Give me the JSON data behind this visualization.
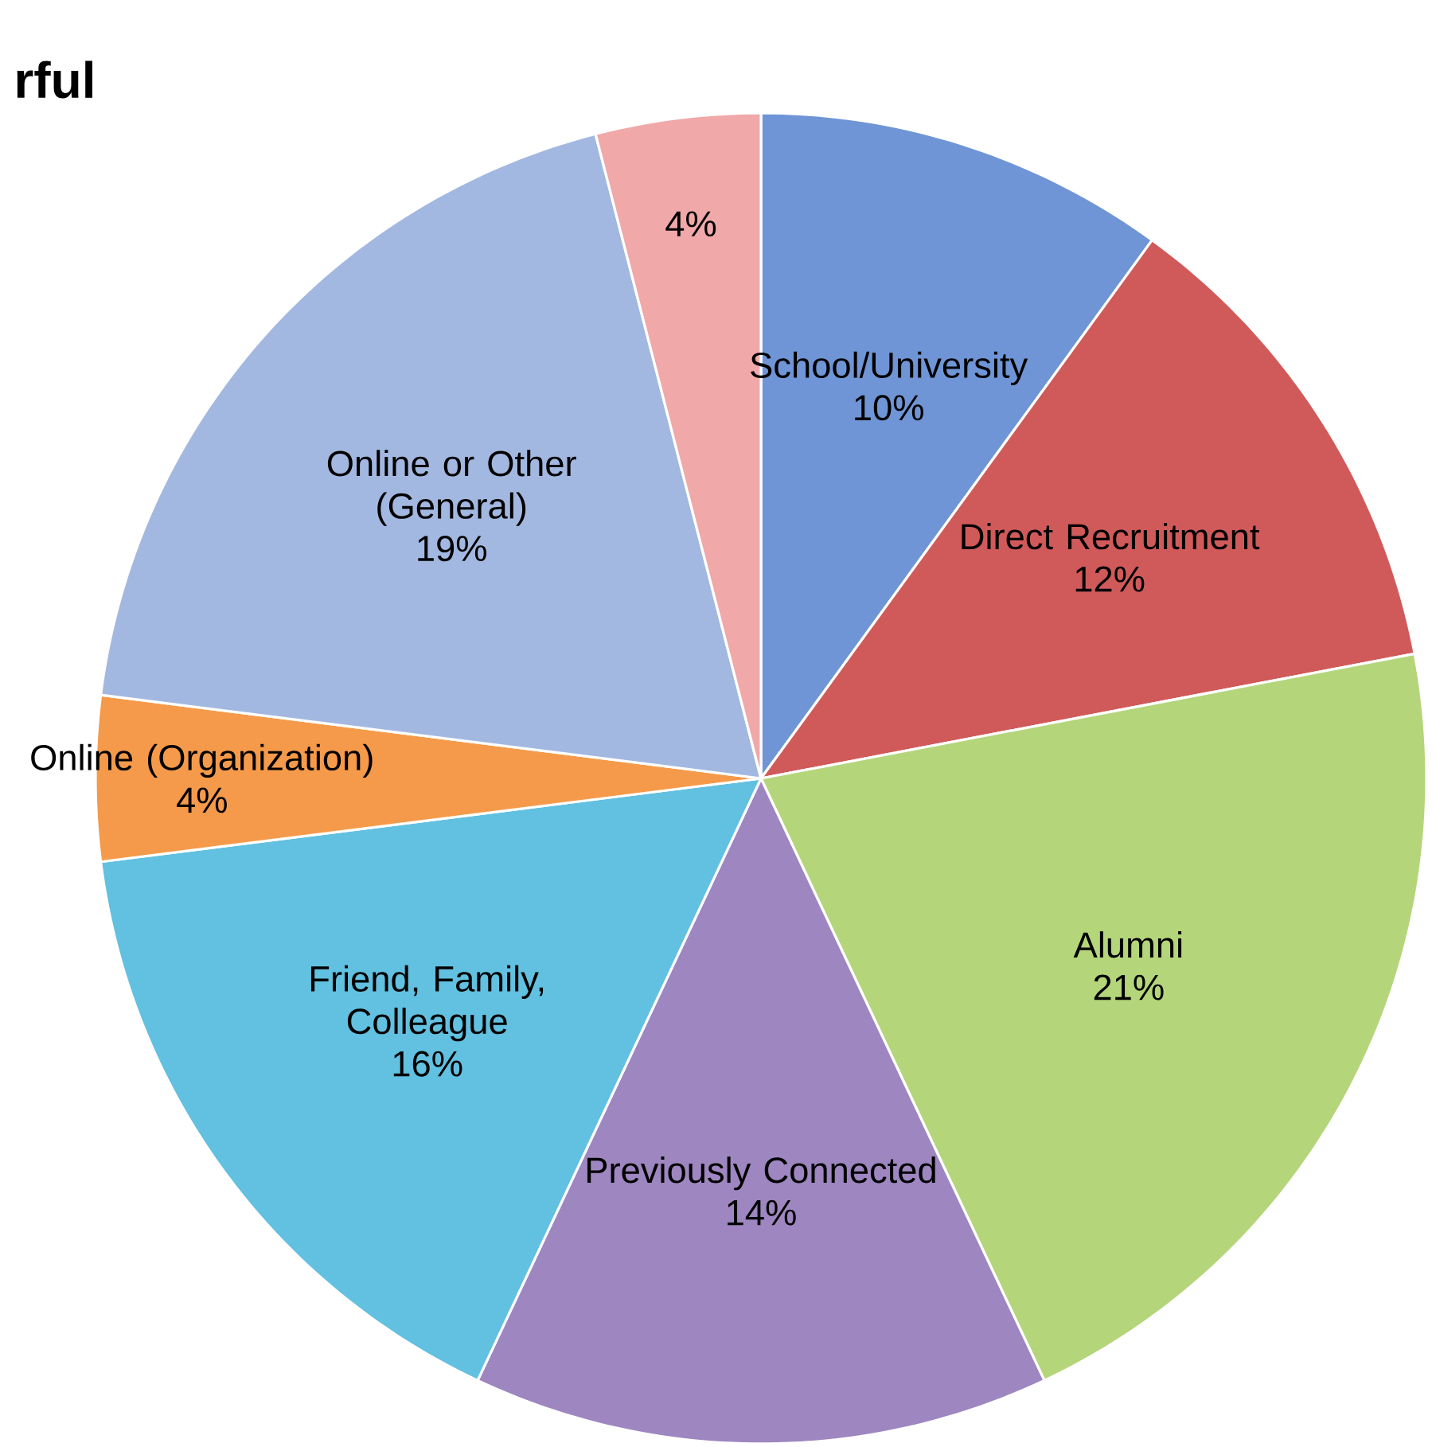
{
  "chart_data": {
    "type": "pie",
    "title": "rful",
    "categories": [
      "School/University",
      "Direct Recruitment",
      "Alumni",
      "Previously Connected",
      "Friend, Family, Colleague",
      "Online (Organization)",
      "Online or Other (General)",
      null
    ],
    "values": [
      10,
      12,
      21,
      14,
      16,
      4,
      19,
      4
    ],
    "value_labels": [
      "10%",
      "12%",
      "21%",
      "14%",
      "16%",
      "4%",
      "19%",
      "4%"
    ],
    "colors": [
      "#6f95d6",
      "#d05a5a",
      "#b5d57a",
      "#9e86c0",
      "#62c0e0",
      "#f59a4a",
      "#a3b8e0",
      "#f0a8a8"
    ],
    "legend": false
  }
}
